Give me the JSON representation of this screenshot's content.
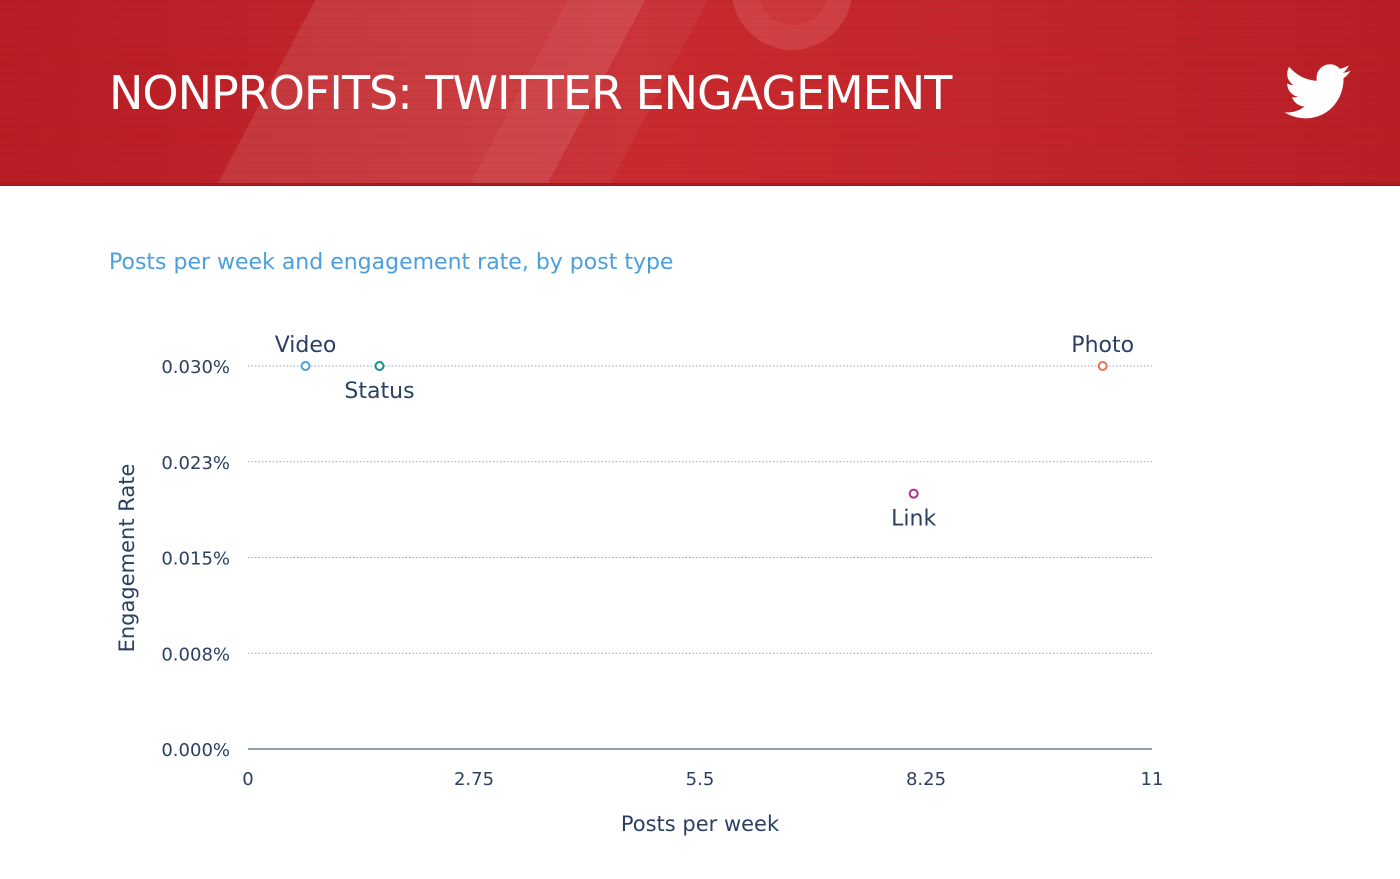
{
  "header": {
    "title": "NONPROFITS: TWITTER ENGAGEMENT",
    "logo_icon": "twitter-bird-icon",
    "logo_color": "#ffffff",
    "banner_color": "#c4262b"
  },
  "chart": {
    "subtitle": "Posts per week and engagement rate, by post type",
    "subtitle_color": "#4a9fdc"
  },
  "chart_data": {
    "type": "scatter",
    "title": "",
    "subtitle": "Posts per week and engagement rate, by post type",
    "xlabel": "Posts per week",
    "ylabel": "Engagement Rate",
    "xlim": [
      0,
      11
    ],
    "ylim": [
      0,
      0.03
    ],
    "x_ticks": [
      {
        "value": 0,
        "label": "0"
      },
      {
        "value": 2.75,
        "label": "2.75"
      },
      {
        "value": 5.5,
        "label": "5.5"
      },
      {
        "value": 8.25,
        "label": "8.25"
      },
      {
        "value": 11,
        "label": "11"
      }
    ],
    "y_ticks": [
      {
        "value": 0,
        "label": "0.000%"
      },
      {
        "value": 0.0075,
        "label": "0.008%"
      },
      {
        "value": 0.015,
        "label": "0.015%"
      },
      {
        "value": 0.0225,
        "label": "0.023%"
      },
      {
        "value": 0.03,
        "label": "0.030%"
      }
    ],
    "grid": "horizontal dotted",
    "legend": "none",
    "points": [
      {
        "name": "Video",
        "x": 0.7,
        "y": 0.03,
        "color": "#4a9fdc",
        "label_position": "above"
      },
      {
        "name": "Status",
        "x": 1.6,
        "y": 0.03,
        "color": "#1a8f8f",
        "label_position": "below"
      },
      {
        "name": "Link",
        "x": 8.1,
        "y": 0.02,
        "color": "#b0308f",
        "label_position": "below"
      },
      {
        "name": "Photo",
        "x": 10.4,
        "y": 0.03,
        "color": "#e8734a",
        "label_position": "above"
      }
    ]
  }
}
